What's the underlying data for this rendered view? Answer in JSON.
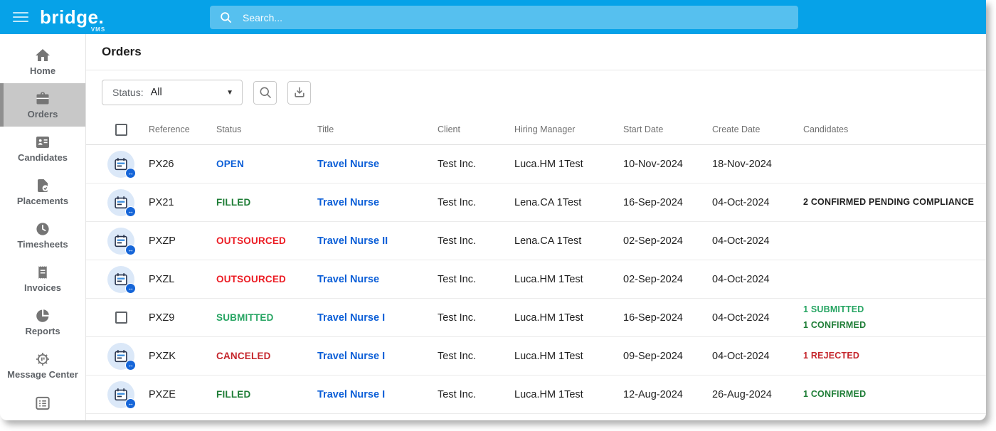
{
  "topbar": {
    "brand": "bridge.",
    "brand_sub": "VMS",
    "search_placeholder": "Search..."
  },
  "sidebar": {
    "items": [
      {
        "label": "Home",
        "icon": "home",
        "active": false
      },
      {
        "label": "Orders",
        "icon": "briefcase",
        "active": true
      },
      {
        "label": "Candidates",
        "icon": "candidates",
        "active": false
      },
      {
        "label": "Placements",
        "icon": "placements",
        "active": false
      },
      {
        "label": "Timesheets",
        "icon": "clock",
        "active": false
      },
      {
        "label": "Invoices",
        "icon": "receipt",
        "active": false
      },
      {
        "label": "Reports",
        "icon": "pie-chart",
        "active": false
      },
      {
        "label": "Message Center",
        "icon": "message-center",
        "active": false
      },
      {
        "label": "",
        "icon": "list",
        "active": false
      }
    ]
  },
  "page": {
    "title": "Orders"
  },
  "filters": {
    "status_label": "Status:",
    "status_value": "All",
    "caret": "▼"
  },
  "icons": {
    "order_badge_arrow": "↔",
    "toolbar": [
      "search-icon",
      "download-icon"
    ]
  },
  "colors": {
    "topbar_blue": "#06A2E8",
    "status": {
      "OPEN": "#0B5ED7",
      "FILLED": "#1E7D36",
      "OUTSOURCED": "#EC1C24",
      "SUBMITTED": "#27A563",
      "CANCELED": "#C5262C"
    },
    "candidate_kinds": {
      "submitted": "#27A563",
      "confirmed": "#1E7D36",
      "rejected": "#C5262C",
      "pending_compliance": "#1F1F1F"
    },
    "title_link": "#0B5ED7"
  },
  "table": {
    "headers": [
      "Reference",
      "Status",
      "Title",
      "Client",
      "Hiring Manager",
      "Start Date",
      "Create Date",
      "Candidates"
    ],
    "rows": [
      {
        "leading": "icon",
        "reference": "PX26",
        "status": "OPEN",
        "title": "Travel Nurse",
        "client": "Test Inc.",
        "hiring_manager": "Luca.HM 1Test",
        "start_date": "10-Nov-2024",
        "create_date": "18-Nov-2024",
        "candidates": []
      },
      {
        "leading": "icon",
        "reference": "PX21",
        "status": "FILLED",
        "title": "Travel Nurse",
        "client": "Test Inc.",
        "hiring_manager": "Lena.CA 1Test",
        "start_date": "16-Sep-2024",
        "create_date": "04-Oct-2024",
        "candidates": [
          {
            "text": "2 CONFIRMED PENDING COMPLIANCE",
            "kind": "pending_compliance"
          }
        ]
      },
      {
        "leading": "icon",
        "reference": "PXZP",
        "status": "OUTSOURCED",
        "title": "Travel Nurse II",
        "client": "Test Inc.",
        "hiring_manager": "Lena.CA 1Test",
        "start_date": "02-Sep-2024",
        "create_date": "04-Oct-2024",
        "candidates": []
      },
      {
        "leading": "icon",
        "reference": "PXZL",
        "status": "OUTSOURCED",
        "title": "Travel Nurse",
        "client": "Test Inc.",
        "hiring_manager": "Luca.HM 1Test",
        "start_date": "02-Sep-2024",
        "create_date": "04-Oct-2024",
        "candidates": []
      },
      {
        "leading": "checkbox",
        "reference": "PXZ9",
        "status": "SUBMITTED",
        "title": "Travel Nurse I",
        "client": "Test Inc.",
        "hiring_manager": "Luca.HM 1Test",
        "start_date": "16-Sep-2024",
        "create_date": "04-Oct-2024",
        "candidates": [
          {
            "text": "1 SUBMITTED",
            "kind": "submitted"
          },
          {
            "text": "1 CONFIRMED",
            "kind": "confirmed"
          }
        ]
      },
      {
        "leading": "icon",
        "reference": "PXZK",
        "status": "CANCELED",
        "title": "Travel Nurse I",
        "client": "Test Inc.",
        "hiring_manager": "Luca.HM 1Test",
        "start_date": "09-Sep-2024",
        "create_date": "04-Oct-2024",
        "candidates": [
          {
            "text": "1 REJECTED",
            "kind": "rejected"
          }
        ]
      },
      {
        "leading": "icon",
        "reference": "PXZE",
        "status": "FILLED",
        "title": "Travel Nurse I",
        "client": "Test Inc.",
        "hiring_manager": "Luca.HM 1Test",
        "start_date": "12-Aug-2024",
        "create_date": "26-Aug-2024",
        "candidates": [
          {
            "text": "1 CONFIRMED",
            "kind": "confirmed"
          }
        ]
      }
    ]
  }
}
